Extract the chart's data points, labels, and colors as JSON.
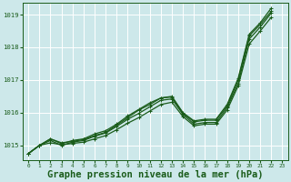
{
  "background_color": "#cde8ea",
  "grid_color": "#b0d8da",
  "line_color": "#1a5c1a",
  "title": "Graphe pression niveau de la mer (hPa)",
  "title_fontsize": 7.5,
  "xlim": [
    -0.5,
    23.5
  ],
  "ylim": [
    1014.55,
    1019.35
  ],
  "yticks": [
    1015,
    1016,
    1017,
    1018,
    1019
  ],
  "xticks": [
    0,
    1,
    2,
    3,
    4,
    5,
    6,
    7,
    8,
    9,
    10,
    11,
    12,
    13,
    14,
    15,
    16,
    17,
    18,
    19,
    20,
    21,
    22,
    23
  ],
  "series": [
    {
      "x": [
        0,
        1,
        2,
        3,
        4,
        5,
        6,
        7,
        8,
        9,
        10,
        11,
        12,
        13,
        14,
        15,
        16,
        17,
        18,
        19,
        20,
        21,
        22
      ],
      "y": [
        1014.75,
        1015.0,
        1015.2,
        1015.05,
        1015.15,
        1015.2,
        1015.35,
        1015.45,
        1015.65,
        1015.9,
        1016.1,
        1016.3,
        1016.45,
        1016.5,
        1016.0,
        1015.75,
        1015.8,
        1015.8,
        1016.25,
        1017.05,
        1018.4,
        1018.75,
        1019.2
      ]
    },
    {
      "x": [
        0,
        1,
        2,
        3,
        4,
        5,
        6,
        7,
        8,
        9,
        10,
        11,
        12,
        13,
        14,
        15,
        16,
        17,
        18,
        19,
        20,
        21,
        22
      ],
      "y": [
        1014.75,
        1015.0,
        1015.15,
        1015.0,
        1015.1,
        1015.15,
        1015.28,
        1015.38,
        1015.58,
        1015.8,
        1015.98,
        1016.18,
        1016.38,
        1016.42,
        1015.95,
        1015.65,
        1015.7,
        1015.7,
        1016.15,
        1016.9,
        1018.25,
        1018.62,
        1019.05
      ]
    },
    {
      "x": [
        0,
        1,
        2,
        3,
        4,
        5,
        6,
        7,
        8,
        9,
        10,
        11,
        12,
        13,
        14,
        15,
        16,
        17,
        18,
        19,
        20,
        21,
        22
      ],
      "y": [
        1014.75,
        1015.0,
        1015.2,
        1015.08,
        1015.12,
        1015.18,
        1015.3,
        1015.4,
        1015.62,
        1015.85,
        1016.08,
        1016.25,
        1016.45,
        1016.48,
        1015.98,
        1015.72,
        1015.77,
        1015.77,
        1016.2,
        1017.0,
        1018.35,
        1018.7,
        1019.1
      ]
    },
    {
      "x": [
        0,
        1,
        2,
        3,
        4,
        5,
        6,
        7,
        8,
        9,
        10,
        11,
        12,
        13,
        14,
        15,
        16,
        17,
        18,
        19,
        20,
        21,
        22
      ],
      "y": [
        1014.75,
        1015.0,
        1015.08,
        1015.02,
        1015.06,
        1015.1,
        1015.2,
        1015.3,
        1015.48,
        1015.68,
        1015.85,
        1016.05,
        1016.25,
        1016.32,
        1015.88,
        1015.6,
        1015.65,
        1015.65,
        1016.08,
        1016.82,
        1018.1,
        1018.5,
        1018.92
      ]
    }
  ],
  "marker": "+",
  "markersize": 3.5,
  "linewidth": 0.9
}
